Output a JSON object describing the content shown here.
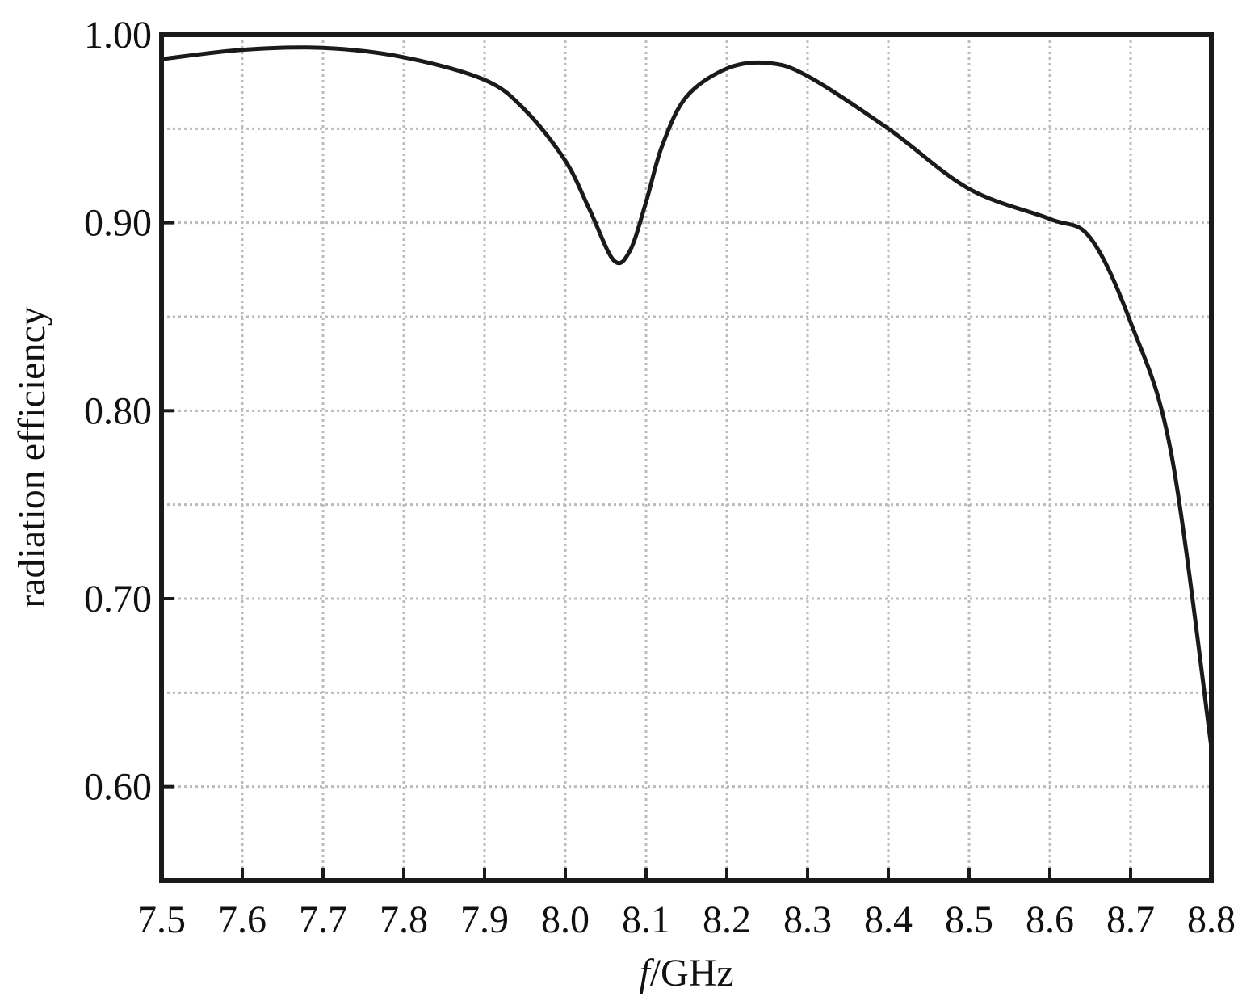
{
  "chart_data": {
    "type": "line",
    "ylabel": "radiation efficiency",
    "xlabel_symbol": "f",
    "xlabel_unit": "/GHz",
    "x": [
      7.5,
      7.6,
      7.7,
      7.8,
      7.9,
      7.95,
      8.0,
      8.03,
      8.06,
      8.08,
      8.1,
      8.12,
      8.15,
      8.2,
      8.25,
      8.3,
      8.4,
      8.5,
      8.6,
      8.65,
      8.7,
      8.75,
      8.8
    ],
    "series": [
      {
        "color": "#1a1a1a",
        "values": [
          0.987,
          0.992,
          0.993,
          0.988,
          0.976,
          0.96,
          0.933,
          0.907,
          0.88,
          0.885,
          0.911,
          0.941,
          0.967,
          0.982,
          0.985,
          0.978,
          0.95,
          0.918,
          0.902,
          0.892,
          0.847,
          0.778,
          0.621
        ]
      }
    ],
    "xlim": [
      7.5,
      8.8
    ],
    "ylim": [
      0.55,
      1.0
    ],
    "xticks": [
      7.5,
      7.6,
      7.7,
      7.8,
      7.9,
      {
        "value": 8,
        "label": "8.0"
      },
      8.1,
      8.2,
      8.3,
      8.4,
      8.5,
      8.6,
      8.7,
      8.8
    ],
    "yticks": [
      {
        "value": 0.6,
        "label": "0.60"
      },
      {
        "value": 0.7,
        "label": "0.70"
      },
      {
        "value": 0.8,
        "label": "0.80"
      },
      {
        "value": 0.9,
        "label": "0.90"
      },
      {
        "value": 1,
        "label": "1.00"
      }
    ],
    "y_minor_grid": [
      0.65,
      0.75,
      0.85,
      0.95
    ],
    "grid": true
  }
}
